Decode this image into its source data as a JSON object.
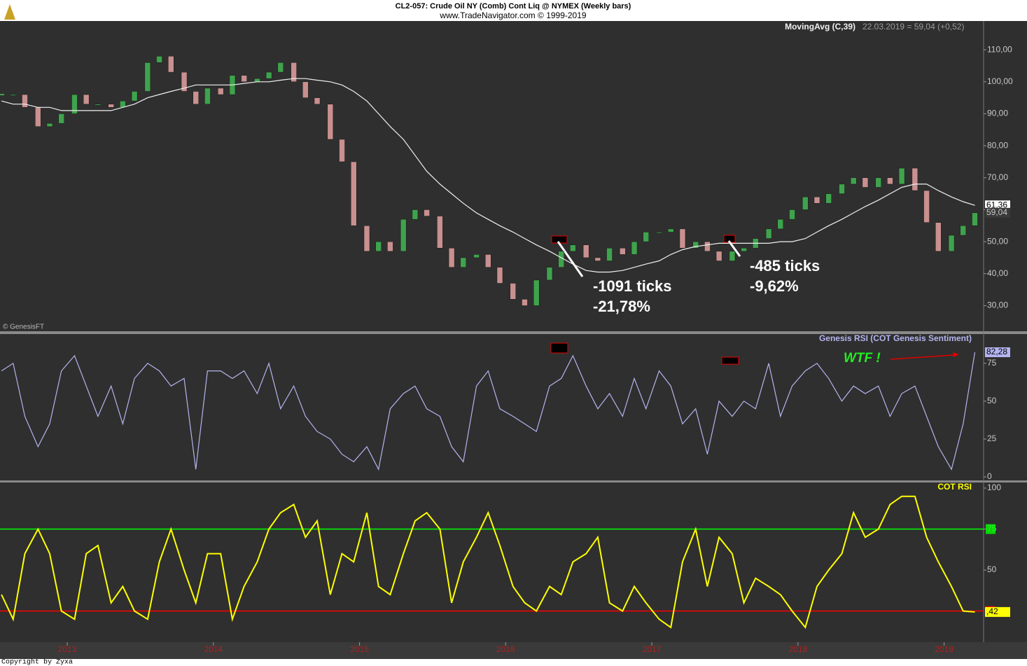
{
  "header": {
    "title": "CL2-057:  Crude Oil NY (Comb) Cont Liq @ NYMEX  (Weekly bars)",
    "subtitle": "www.TradeNavigator.com © 1999-2019"
  },
  "x": [
    2012.55,
    2012.63,
    2012.71,
    2012.8,
    2012.88,
    2012.96,
    2013.05,
    2013.13,
    2013.21,
    2013.3,
    2013.38,
    2013.46,
    2013.55,
    2013.63,
    2013.71,
    2013.8,
    2013.88,
    2013.96,
    2014.05,
    2014.13,
    2014.21,
    2014.3,
    2014.38,
    2014.46,
    2014.55,
    2014.63,
    2014.71,
    2014.8,
    2014.88,
    2014.96,
    2015.05,
    2015.13,
    2015.21,
    2015.3,
    2015.38,
    2015.46,
    2015.55,
    2015.63,
    2015.71,
    2015.8,
    2015.88,
    2015.96,
    2016.05,
    2016.13,
    2016.21,
    2016.3,
    2016.38,
    2016.46,
    2016.55,
    2016.63,
    2016.71,
    2016.8,
    2016.88,
    2016.96,
    2017.05,
    2017.13,
    2017.21,
    2017.3,
    2017.38,
    2017.46,
    2017.55,
    2017.63,
    2017.71,
    2017.8,
    2017.88,
    2017.96,
    2018.05,
    2018.13,
    2018.21,
    2018.3,
    2018.38,
    2018.46,
    2018.55,
    2018.63,
    2018.71,
    2018.8,
    2018.88,
    2018.96,
    2019.05,
    2019.13,
    2019.21
  ],
  "x_axis": {
    "xlim": [
      2012.54,
      2019.27
    ],
    "xticks": [
      2013,
      2014,
      2015,
      2016,
      2017,
      2018,
      2019
    ]
  },
  "chart_data": [
    {
      "type": "candlestick",
      "up_color": "#3fa34d",
      "down_color": "#c99090",
      "close": [
        96,
        96,
        92,
        86,
        87,
        90,
        96,
        93,
        93,
        92,
        94,
        97,
        106,
        108,
        103,
        97,
        93,
        98,
        96,
        102,
        100,
        101,
        103,
        106,
        100,
        95,
        93,
        82,
        75,
        55,
        47,
        50,
        47,
        57,
        60,
        58,
        48,
        42,
        45,
        46,
        42,
        37,
        32,
        30,
        38,
        42,
        47,
        49,
        45,
        44,
        48,
        46,
        50,
        53,
        53,
        54,
        48,
        50,
        47,
        44,
        47,
        48,
        51,
        54,
        57,
        60,
        64,
        62,
        65,
        68,
        70,
        67,
        70,
        68,
        73,
        66,
        56,
        47,
        52,
        55,
        59.04
      ],
      "close_last_label": "59,04",
      "ma": {
        "name": "MovingAvg (C,39)",
        "color": "#f0f0f0",
        "values": [
          94,
          93,
          93,
          92,
          92,
          91,
          91,
          91,
          91,
          91,
          92,
          93,
          95,
          96,
          97,
          98,
          99,
          99,
          99,
          99,
          99.5,
          100,
          100,
          100.5,
          101,
          101,
          100.5,
          100,
          99,
          97,
          94,
          90,
          86,
          82,
          77,
          72,
          68,
          65,
          62,
          59,
          57,
          55,
          53,
          51,
          49,
          47,
          45,
          43,
          41,
          40.5,
          40.5,
          41,
          42,
          43,
          44,
          46,
          47.5,
          48.5,
          49,
          49.5,
          49.5,
          49.5,
          49.5,
          49.5,
          50,
          50,
          51,
          53,
          55,
          57,
          59,
          61,
          63,
          65,
          67,
          68,
          68,
          66,
          64,
          62.5,
          61.36
        ],
        "last_label": "61,36"
      },
      "info": "22.03.2019 = 59,04 (+0,52)",
      "ylim": [
        22,
        119
      ],
      "yticks": [
        {
          "value": 30,
          "label": "30,00"
        },
        {
          "value": 40,
          "label": "40,00"
        },
        {
          "value": 50,
          "label": "50,00"
        },
        {
          "value": 60,
          "label": "60,00"
        },
        {
          "value": 70,
          "label": "70,00"
        },
        {
          "value": 80,
          "label": "80,00"
        },
        {
          "value": 90,
          "label": "90,00"
        },
        {
          "value": 100,
          "label": "100,00"
        },
        {
          "value": 110,
          "label": "110,00"
        }
      ],
      "grid": false,
      "annotations": [
        "-1091 ticks",
        "-21,78%",
        "-485 ticks",
        "-9,62%"
      ],
      "credit": "© GenesisFT"
    },
    {
      "type": "line",
      "series": [
        {
          "name": "Genesis RSI (COT Genesis Sentiment)",
          "color": "#b4b4f0",
          "values": [
            70,
            75,
            40,
            20,
            35,
            70,
            80,
            60,
            40,
            60,
            35,
            65,
            75,
            70,
            60,
            65,
            5,
            70,
            70,
            65,
            70,
            55,
            75,
            45,
            60,
            40,
            30,
            25,
            15,
            10,
            20,
            5,
            45,
            55,
            60,
            45,
            40,
            20,
            10,
            60,
            70,
            45,
            40,
            35,
            30,
            60,
            65,
            80,
            60,
            45,
            55,
            40,
            65,
            45,
            70,
            60,
            35,
            45,
            15,
            50,
            40,
            50,
            45,
            75,
            40,
            60,
            70,
            75,
            65,
            50,
            60,
            55,
            60,
            40,
            55,
            60,
            40,
            20,
            5,
            35,
            82.28
          ],
          "last_label": "82,28"
        }
      ],
      "ylim": [
        -2.3,
        94.3
      ],
      "yticks": [
        0,
        25,
        50,
        75
      ],
      "grid": false,
      "annotation": "WTF !"
    },
    {
      "type": "line",
      "series": [
        {
          "name": "COT RSI",
          "color": "#ffff00",
          "values": [
            35,
            20,
            60,
            75,
            60,
            25,
            20,
            60,
            65,
            30,
            40,
            25,
            20,
            55,
            75,
            50,
            30,
            60,
            60,
            20,
            40,
            55,
            75,
            85,
            90,
            70,
            80,
            35,
            60,
            55,
            85,
            40,
            35,
            60,
            80,
            85,
            75,
            30,
            55,
            70,
            85,
            65,
            40,
            30,
            25,
            40,
            35,
            55,
            60,
            70,
            30,
            25,
            40,
            30,
            20,
            15,
            55,
            75,
            40,
            70,
            60,
            30,
            45,
            40,
            35,
            25,
            15,
            40,
            50,
            60,
            85,
            70,
            75,
            90,
            95,
            95,
            70,
            55,
            40,
            25,
            24.42
          ],
          "last_label": ",42"
        }
      ],
      "levels": [
        {
          "value": 75,
          "color": "#00ff00"
        },
        {
          "value": 25,
          "color": "#ff0000"
        }
      ],
      "ylim": [
        6,
        103.4
      ],
      "yticks": [
        50,
        75,
        100
      ],
      "grid": false
    }
  ],
  "footer": "Copyright by Zyxa"
}
